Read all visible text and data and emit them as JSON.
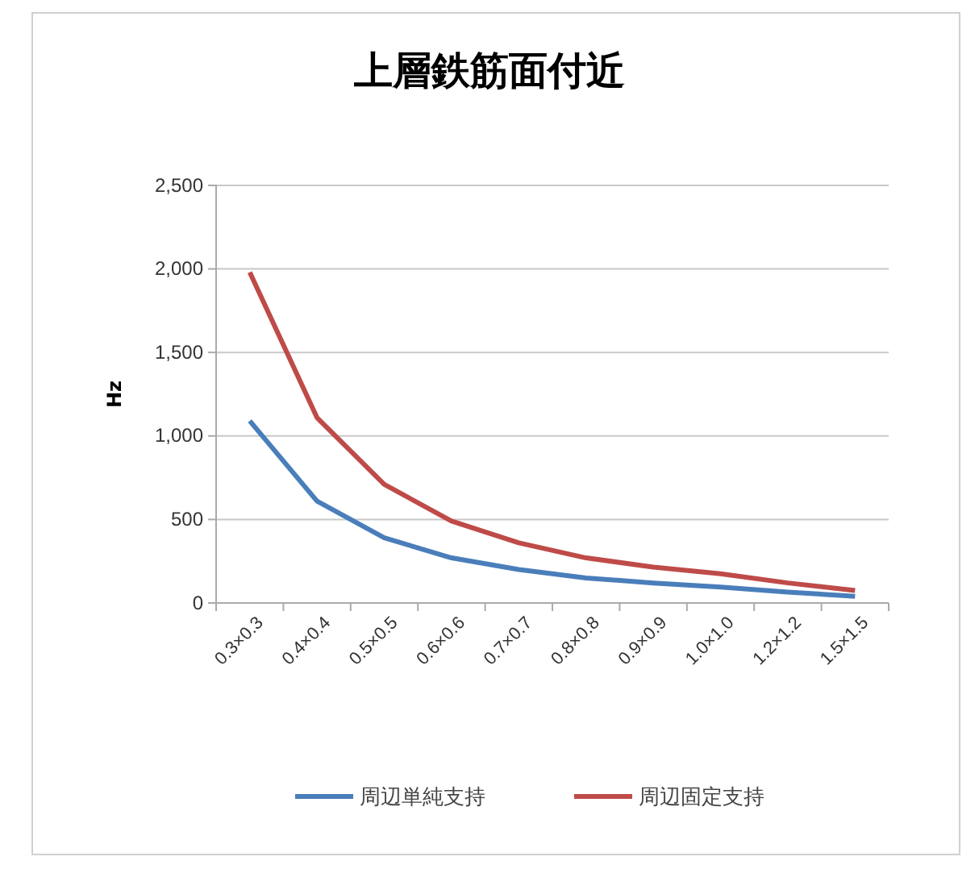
{
  "chart_data": {
    "type": "line",
    "title": "上層鉄筋面付近",
    "ylabel": "Hz",
    "categories": [
      "0.3×0.3",
      "0.4×0.4",
      "0.5×0.5",
      "0.6×0.6",
      "0.7×0.7",
      "0.8×0.8",
      "0.9×0.9",
      "1.0×1.0",
      "1.2×1.2",
      "1.5×1.5"
    ],
    "series": [
      {
        "name": "周辺単純支持",
        "color": "#4a7ebb",
        "values": [
          1090,
          610,
          390,
          270,
          200,
          150,
          120,
          95,
          65,
          40
        ]
      },
      {
        "name": "周辺固定支持",
        "color": "#be4b48",
        "values": [
          1980,
          1110,
          710,
          490,
          360,
          270,
          215,
          175,
          120,
          75
        ]
      }
    ],
    "ylim": [
      0,
      2500
    ],
    "yticks": [
      {
        "value": 0,
        "label": "0"
      },
      {
        "value": 500,
        "label": "500"
      },
      {
        "value": 1000,
        "label": "1,000"
      },
      {
        "value": 1500,
        "label": "1,500"
      },
      {
        "value": 2000,
        "label": "2,000"
      },
      {
        "value": 2500,
        "label": "2,500"
      }
    ],
    "grid": "y",
    "legend": "bottom",
    "marker": "none",
    "line_style": "solid"
  }
}
